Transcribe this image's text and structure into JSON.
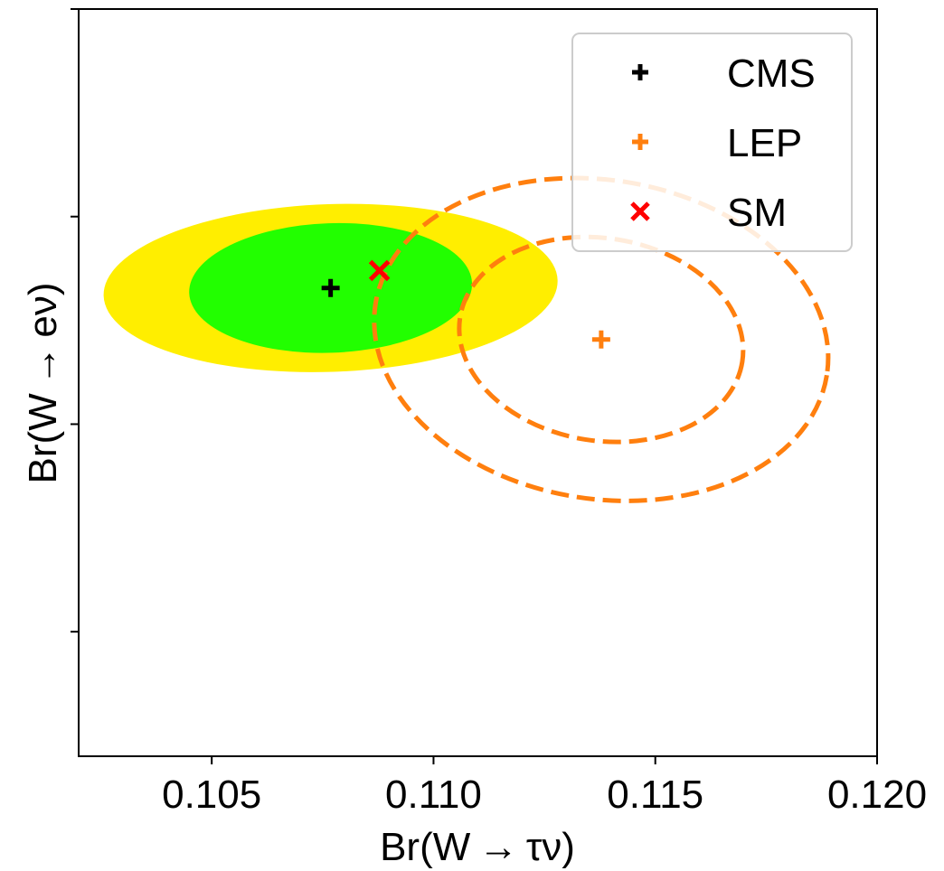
{
  "chart_data": {
    "type": "scatter",
    "xlabel": "Br(W → τν)",
    "ylabel": "Br(W → eν)",
    "xlim": [
      0.102,
      0.12
    ],
    "ylim": [
      0.1035,
      0.1125
    ],
    "x_ticks": [
      0.105,
      0.11,
      0.115,
      0.12
    ],
    "x_tick_labels": [
      "0.105",
      "0.110",
      "0.115",
      "0.120"
    ],
    "y_ticks": [
      0.105,
      0.1075,
      0.11,
      0.1125
    ],
    "grid": false,
    "legend": {
      "placement": "top-right",
      "entries": [
        {
          "label": "CMS",
          "marker": "plus",
          "color": "#000000"
        },
        {
          "label": "LEP",
          "marker": "plus",
          "color": "#ff7f0e"
        },
        {
          "label": "SM",
          "marker": "x",
          "color": "#ff0000"
        }
      ]
    },
    "points": [
      {
        "name": "CMS",
        "x": 0.10768,
        "y": 0.10914,
        "marker": "plus",
        "color": "#000000"
      },
      {
        "name": "LEP",
        "x": 0.11378,
        "y": 0.10852,
        "marker": "plus",
        "color": "#ff7f0e"
      },
      {
        "name": "SM",
        "x": 0.10878,
        "y": 0.10935,
        "marker": "x",
        "color": "#ff0000"
      }
    ],
    "contours": [
      {
        "group": "CMS",
        "level": "2 sigma",
        "style": "filled",
        "color": "#ffee00",
        "center": [
          0.10768,
          0.10914
        ],
        "x_halfwidth": 0.00512,
        "y_halfheight": 0.00101,
        "tilt_deg": -2
      },
      {
        "group": "CMS",
        "level": "1 sigma",
        "style": "filled",
        "color": "#22ff00",
        "center": [
          0.10768,
          0.10914
        ],
        "x_halfwidth": 0.00319,
        "y_halfheight": 0.00078,
        "tilt_deg": -2
      },
      {
        "group": "LEP",
        "level": "2 sigma",
        "style": "dashed",
        "color": "#ff7f0e",
        "center": [
          0.11378,
          0.10852
        ],
        "x_halfwidth": 0.00515,
        "y_halfheight": 0.00192,
        "tilt_deg": 9
      },
      {
        "group": "LEP",
        "level": "1 sigma",
        "style": "dashed",
        "color": "#ff7f0e",
        "center": [
          0.11378,
          0.10852
        ],
        "x_halfwidth": 0.00322,
        "y_halfheight": 0.00122,
        "tilt_deg": 9
      }
    ]
  }
}
